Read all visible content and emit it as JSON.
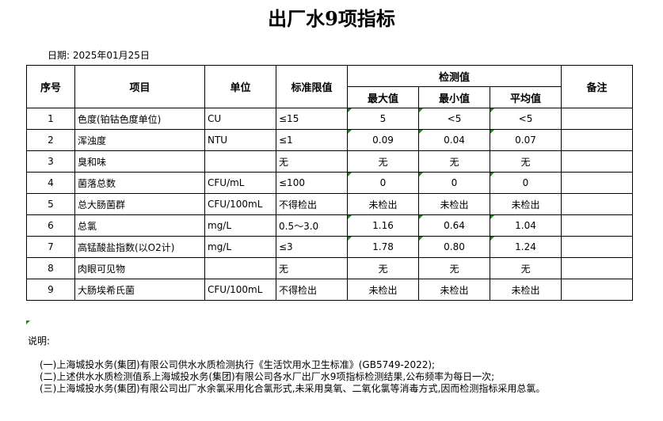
{
  "title": "出厂水9项指标",
  "date": "日期: 2025年01月25日",
  "headers": {
    "no": "序号",
    "item": "项目",
    "unit": "单位",
    "limit": "标准限值",
    "measured": "检测值",
    "max": "最大值",
    "min": "最小值",
    "avg": "平均值",
    "remark": "备注"
  },
  "rows": [
    {
      "no": "1",
      "item": "色度(铂钴色度单位)",
      "unit": "CU",
      "limit": "≤15",
      "max": "5",
      "min": "<5",
      "avg": "<5"
    },
    {
      "no": "2",
      "item": "浑浊度",
      "unit": "NTU",
      "limit": "≤1",
      "max": "0.09",
      "min": "0.04",
      "avg": "0.07"
    },
    {
      "no": "3",
      "item": "臭和味",
      "unit": "",
      "limit": "无",
      "max": "无",
      "min": "无",
      "avg": "无"
    },
    {
      "no": "4",
      "item": "菌落总数",
      "unit": "CFU/mL",
      "limit": "≤100",
      "max": "0",
      "min": "0",
      "avg": "0"
    },
    {
      "no": "5",
      "item": "总大肠菌群",
      "unit": "CFU/100mL",
      "limit": "不得检出",
      "max": "未检出",
      "min": "未检出",
      "avg": "未检出"
    },
    {
      "no": "6",
      "item": "总氯",
      "unit": "mg/L",
      "limit": "0.5～3.0",
      "max": "1.16",
      "min": "0.64",
      "avg": "1.04"
    },
    {
      "no": "7",
      "item": "高锰酸盐指数(以O2计)",
      "unit": "mg/L",
      "limit": "≤3",
      "max": "1.78",
      "min": "0.80",
      "avg": "1.24"
    },
    {
      "no": "8",
      "item": "肉眼可见物",
      "unit": "",
      "limit": "无",
      "max": "无",
      "min": "无",
      "avg": "无"
    },
    {
      "no": "9",
      "item": "大肠埃希氏菌",
      "unit": "CFU/100mL",
      "limit": "不得检出",
      "max": "未检出",
      "min": "未检出",
      "avg": "未检出"
    }
  ],
  "notes": {
    "label": "说明:",
    "items": [
      "(一)上海城投水务(集团)有限公司供水水质检测执行《生活饮用水卫生标准》(GB5749-2022);",
      "(二)上述供水水质检测值系上海城投水务(集团)有限公司各水厂出厂水9项指标检测结果,公布频率为每日一次;",
      "(三)上海城投水务(集团)有限公司出厂水余氯采用化合氯形式,未采用臭氧、二氧化氯等消毒方式,因而检测指标采用总氯。"
    ]
  }
}
